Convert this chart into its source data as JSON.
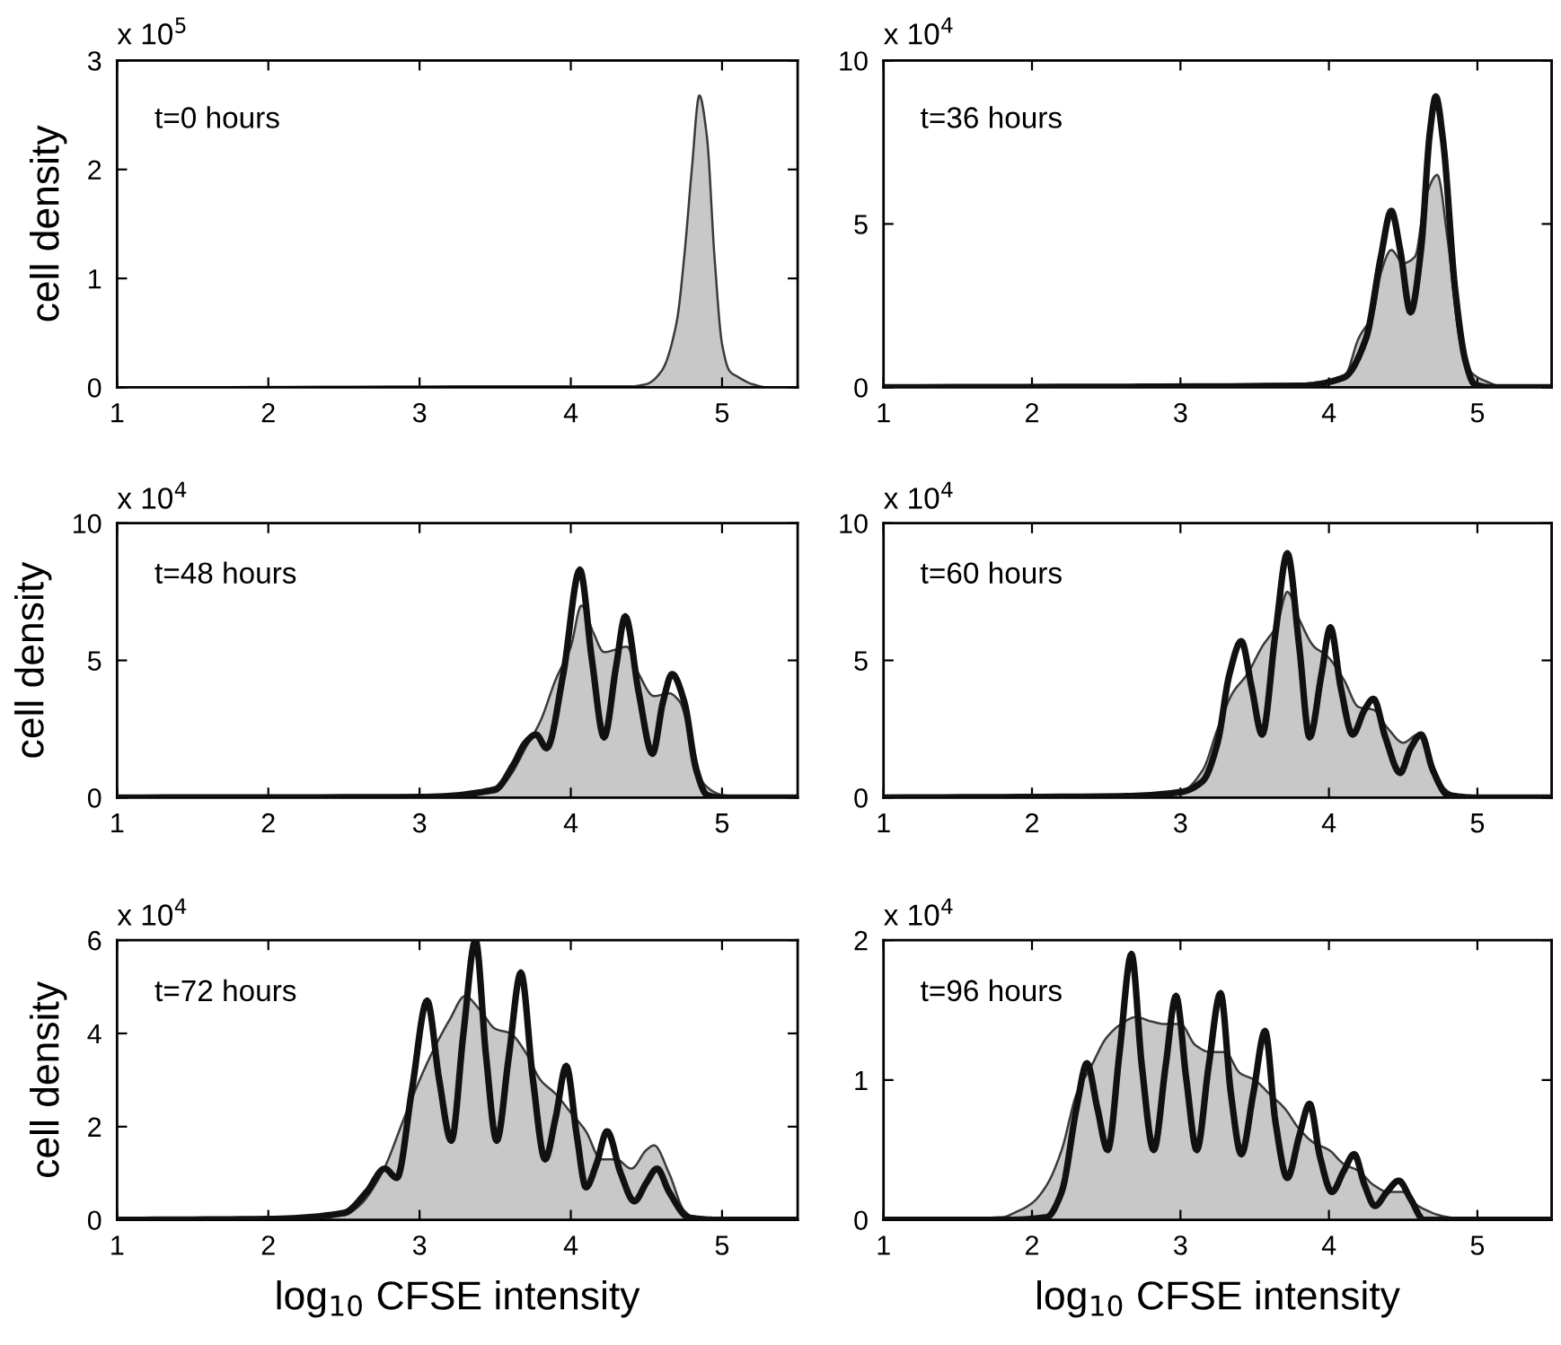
{
  "chart_data": [
    {
      "type": "area",
      "title": "t=0 hours",
      "ylabel": "cell density",
      "annotations": [
        "x 10$^{5}$"
      ],
      "xlim": [
        1,
        5.5
      ],
      "ylim": [
        0,
        3
      ],
      "xticks": [
        1,
        2,
        3,
        4,
        5
      ],
      "yticks": [
        0,
        1,
        2,
        3
      ],
      "series": [
        {
          "color": "#c8c8c8",
          "x": [
            1,
            3.7,
            4.4,
            4.5,
            4.6,
            4.7,
            4.75,
            4.8,
            4.85,
            4.9,
            4.95,
            5.0,
            5.05,
            5.1,
            5.2,
            5.3,
            5.5
          ],
          "values": [
            0,
            0.01,
            0.01,
            0.03,
            0.15,
            0.6,
            1.2,
            2.0,
            2.68,
            2.3,
            1.2,
            0.4,
            0.15,
            0.1,
            0.03,
            0,
            0
          ]
        }
      ]
    },
    {
      "type": "area",
      "title": "t=36 hours",
      "annotations": [
        "x 10$^{4}$"
      ],
      "xlim": [
        1,
        5.5
      ],
      "ylim": [
        0,
        10
      ],
      "xticks": [
        1,
        2,
        3,
        4,
        5
      ],
      "yticks": [
        0,
        5,
        10
      ],
      "series": [
        {
          "color": "#c8c8c8",
          "x": [
            1,
            3.8,
            4.1,
            4.2,
            4.3,
            4.35,
            4.42,
            4.5,
            4.58,
            4.65,
            4.73,
            4.8,
            4.88,
            4.95,
            5.05,
            5.2,
            5.5
          ],
          "values": [
            0,
            0.05,
            0.3,
            1.5,
            2.3,
            3.5,
            4.2,
            3.8,
            4.0,
            5.8,
            6.5,
            4.5,
            1.5,
            0.5,
            0.2,
            0,
            0
          ]
        },
        {
          "type": "line",
          "color": "#111111",
          "x": [
            1,
            3.8,
            4.1,
            4.25,
            4.35,
            4.42,
            4.48,
            4.55,
            4.62,
            4.68,
            4.72,
            4.77,
            4.85,
            4.92,
            4.98,
            5.1,
            5.5
          ],
          "values": [
            0,
            0.05,
            0.3,
            1.5,
            4.0,
            5.4,
            4.2,
            2.3,
            4.2,
            7.8,
            8.9,
            7.5,
            3.0,
            0.8,
            0.1,
            0,
            0
          ]
        }
      ]
    },
    {
      "type": "area",
      "title": "t=48 hours",
      "ylabel": "cell density",
      "annotations": [
        "x 10$^{4}$"
      ],
      "xlim": [
        1,
        5.5
      ],
      "ylim": [
        0,
        10
      ],
      "xticks": [
        1,
        2,
        3,
        4,
        5
      ],
      "yticks": [
        0,
        5,
        10
      ],
      "series": [
        {
          "color": "#c8c8c8",
          "x": [
            1,
            3.0,
            3.5,
            3.6,
            3.7,
            3.8,
            3.9,
            4.0,
            4.07,
            4.15,
            4.22,
            4.3,
            4.37,
            4.45,
            4.55,
            4.65,
            4.72,
            4.8,
            4.88,
            5.0,
            5.2,
            5.5
          ],
          "values": [
            0,
            0.02,
            0.2,
            0.8,
            1.8,
            2.8,
            4.3,
            5.5,
            7.0,
            6.0,
            5.3,
            5.4,
            5.5,
            4.5,
            3.7,
            3.8,
            3.5,
            2.0,
            0.5,
            0.1,
            0,
            0
          ]
        },
        {
          "type": "line",
          "color": "#111111",
          "x": [
            1,
            3.0,
            3.5,
            3.62,
            3.7,
            3.77,
            3.84,
            3.95,
            4.06,
            4.14,
            4.22,
            4.3,
            4.36,
            4.45,
            4.54,
            4.61,
            4.67,
            4.75,
            4.83,
            4.9,
            5.0,
            5.5
          ],
          "values": [
            0,
            0.02,
            0.3,
            1.2,
            2.0,
            2.3,
            1.8,
            4.5,
            8.3,
            5.0,
            2.2,
            4.8,
            6.6,
            3.8,
            1.6,
            3.5,
            4.5,
            3.5,
            1.0,
            0.1,
            0,
            0
          ]
        }
      ]
    },
    {
      "type": "area",
      "title": "t=60 hours",
      "annotations": [
        "x 10$^{4}$"
      ],
      "xlim": [
        1,
        5.5
      ],
      "ylim": [
        0,
        10
      ],
      "xticks": [
        1,
        2,
        3,
        4,
        5
      ],
      "yticks": [
        0,
        5,
        10
      ],
      "series": [
        {
          "color": "#c8c8c8",
          "x": [
            1,
            2.6,
            3.0,
            3.15,
            3.25,
            3.35,
            3.45,
            3.55,
            3.65,
            3.72,
            3.8,
            3.9,
            3.98,
            4.1,
            4.2,
            4.3,
            4.4,
            4.5,
            4.6,
            4.68,
            4.75,
            4.85,
            5.0,
            5.5
          ],
          "values": [
            0,
            0.05,
            0.2,
            1.0,
            2.5,
            3.8,
            4.5,
            5.5,
            6.3,
            7.5,
            6.5,
            5.5,
            5.2,
            4.3,
            3.3,
            3.2,
            2.5,
            2.0,
            2.3,
            1.5,
            0.5,
            0.1,
            0,
            0
          ]
        },
        {
          "type": "line",
          "color": "#111111",
          "x": [
            1,
            2.6,
            3.0,
            3.15,
            3.25,
            3.33,
            3.41,
            3.48,
            3.55,
            3.64,
            3.72,
            3.8,
            3.87,
            3.95,
            4.01,
            4.08,
            4.16,
            4.24,
            4.3,
            4.38,
            4.48,
            4.55,
            4.62,
            4.7,
            4.8,
            5.0,
            5.5
          ],
          "values": [
            0,
            0.05,
            0.2,
            0.6,
            2.0,
            4.5,
            5.7,
            4.0,
            2.3,
            6.0,
            8.9,
            5.5,
            2.2,
            4.5,
            6.2,
            4.0,
            2.3,
            3.2,
            3.6,
            2.2,
            0.9,
            1.8,
            2.3,
            1.0,
            0.1,
            0,
            0
          ]
        }
      ]
    },
    {
      "type": "area",
      "title": "t=72 hours",
      "xlabel": "log$_{10}$ CFSE intensity",
      "ylabel": "cell density",
      "annotations": [
        "x 10$^{4}$"
      ],
      "xlim": [
        1,
        5.5
      ],
      "ylim": [
        0,
        6
      ],
      "xticks": [
        1,
        2,
        3,
        4,
        5
      ],
      "yticks": [
        0,
        2,
        4,
        6
      ],
      "series": [
        {
          "color": "#c8c8c8",
          "x": [
            1,
            2.0,
            2.5,
            2.6,
            2.75,
            2.9,
            3.0,
            3.1,
            3.2,
            3.3,
            3.4,
            3.5,
            3.6,
            3.7,
            3.8,
            3.9,
            4.0,
            4.1,
            4.2,
            4.3,
            4.4,
            4.5,
            4.55,
            4.65,
            4.75,
            4.85,
            5.5
          ],
          "values": [
            0,
            0.02,
            0.1,
            0.3,
            1.0,
            2.2,
            3.0,
            3.7,
            4.3,
            4.8,
            4.5,
            4.1,
            4.0,
            3.6,
            3.0,
            2.7,
            2.3,
            1.9,
            1.3,
            1.3,
            1.1,
            1.5,
            1.6,
            1.0,
            0.2,
            0,
            0
          ]
        },
        {
          "type": "line",
          "color": "#111111",
          "x": [
            1,
            2.0,
            2.5,
            2.65,
            2.77,
            2.85,
            2.95,
            3.05,
            3.13,
            3.21,
            3.29,
            3.37,
            3.44,
            3.51,
            3.59,
            3.67,
            3.75,
            3.83,
            3.9,
            3.97,
            4.04,
            4.1,
            4.17,
            4.24,
            4.33,
            4.42,
            4.5,
            4.57,
            4.65,
            4.78,
            5.0,
            5.5
          ],
          "values": [
            0,
            0.02,
            0.15,
            0.6,
            1.1,
            0.9,
            2.8,
            4.7,
            3.0,
            1.7,
            4.0,
            6.0,
            3.5,
            1.7,
            3.5,
            5.3,
            3.0,
            1.3,
            2.2,
            3.3,
            1.8,
            0.7,
            1.2,
            1.9,
            1.0,
            0.4,
            0.8,
            1.1,
            0.6,
            0.05,
            0,
            0
          ]
        }
      ]
    },
    {
      "type": "area",
      "title": "t=96 hours",
      "xlabel": "log$_{10}$ CFSE intensity",
      "annotations": [
        "x 10$^{4}$"
      ],
      "xlim": [
        1,
        5.5
      ],
      "ylim": [
        0,
        2
      ],
      "xticks": [
        1,
        2,
        3,
        4,
        5
      ],
      "yticks": [
        0,
        1,
        2
      ],
      "series": [
        {
          "color": "#c8c8c8",
          "x": [
            1,
            1.5,
            1.8,
            1.9,
            2.0,
            2.1,
            2.2,
            2.3,
            2.4,
            2.5,
            2.6,
            2.7,
            2.8,
            2.9,
            3.0,
            3.1,
            3.2,
            3.3,
            3.4,
            3.5,
            3.6,
            3.7,
            3.8,
            3.9,
            4.0,
            4.1,
            4.2,
            4.3,
            4.4,
            4.5,
            4.6,
            4.8,
            5.0,
            5.5
          ],
          "values": [
            0,
            0.01,
            0.02,
            0.06,
            0.12,
            0.25,
            0.5,
            0.9,
            1.1,
            1.3,
            1.4,
            1.45,
            1.42,
            1.4,
            1.4,
            1.25,
            1.2,
            1.2,
            1.05,
            1.0,
            0.9,
            0.8,
            0.65,
            0.55,
            0.5,
            0.4,
            0.35,
            0.25,
            0.2,
            0.2,
            0.1,
            0.02,
            0,
            0
          ]
        },
        {
          "type": "line",
          "color": "#111111",
          "x": [
            1,
            1.8,
            2.1,
            2.2,
            2.3,
            2.37,
            2.44,
            2.51,
            2.59,
            2.67,
            2.74,
            2.82,
            2.9,
            2.97,
            3.04,
            3.11,
            3.19,
            3.27,
            3.34,
            3.41,
            3.49,
            3.57,
            3.64,
            3.72,
            3.8,
            3.87,
            3.94,
            4.02,
            4.1,
            4.17,
            4.24,
            4.31,
            4.39,
            4.47,
            4.55,
            4.64,
            5.0,
            5.5
          ],
          "values": [
            0,
            0.0,
            0.02,
            0.2,
            0.8,
            1.12,
            0.8,
            0.5,
            1.2,
            1.9,
            1.1,
            0.5,
            1.1,
            1.6,
            1.0,
            0.5,
            1.1,
            1.62,
            0.9,
            0.47,
            0.9,
            1.35,
            0.7,
            0.3,
            0.6,
            0.83,
            0.45,
            0.2,
            0.35,
            0.47,
            0.25,
            0.1,
            0.2,
            0.28,
            0.15,
            0.0,
            0,
            0
          ]
        }
      ]
    }
  ]
}
